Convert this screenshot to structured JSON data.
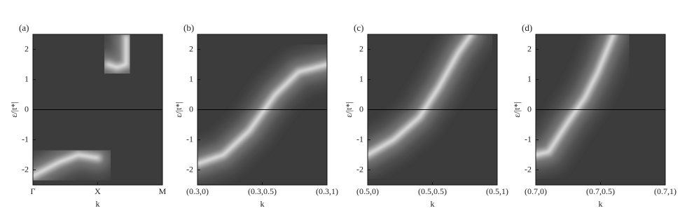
{
  "chart_data": [
    {
      "type": "contour",
      "panel": "(a)",
      "xlabel": "k",
      "ylabel": "ε/|t*|",
      "categories": [
        "Γ",
        "X",
        "M"
      ],
      "ylim": [
        -2.5,
        2.5
      ],
      "yticks": [
        -2,
        -1,
        0,
        1,
        2
      ]
    },
    {
      "type": "contour",
      "panel": "(b)",
      "xlabel": "k",
      "ylabel": "ε/|t*|",
      "categories": [
        "(0.3,0)",
        "(0.3,0.5)",
        "(0.3,1)"
      ],
      "ylim": [
        -2.5,
        2.5
      ],
      "yticks": [
        -2,
        -1,
        0,
        1,
        2
      ]
    },
    {
      "type": "contour",
      "panel": "(c)",
      "xlabel": "k",
      "ylabel": "ε/|t*|",
      "categories": [
        "(0.5,0)",
        "(0.5,0.5)",
        "(0.5,1)"
      ],
      "ylim": [
        -2.5,
        2.5
      ],
      "yticks": [
        -2,
        -1,
        0,
        1,
        2
      ]
    },
    {
      "type": "contour",
      "panel": "(d)",
      "xlabel": "k",
      "ylabel": "ε/|t*|",
      "categories": [
        "(0.7,0)",
        "(0.7,0.5)",
        "(0.7,1)"
      ],
      "ylim": [
        -2.5,
        2.5
      ],
      "yticks": [
        -2,
        -1,
        0,
        1,
        2
      ]
    }
  ]
}
